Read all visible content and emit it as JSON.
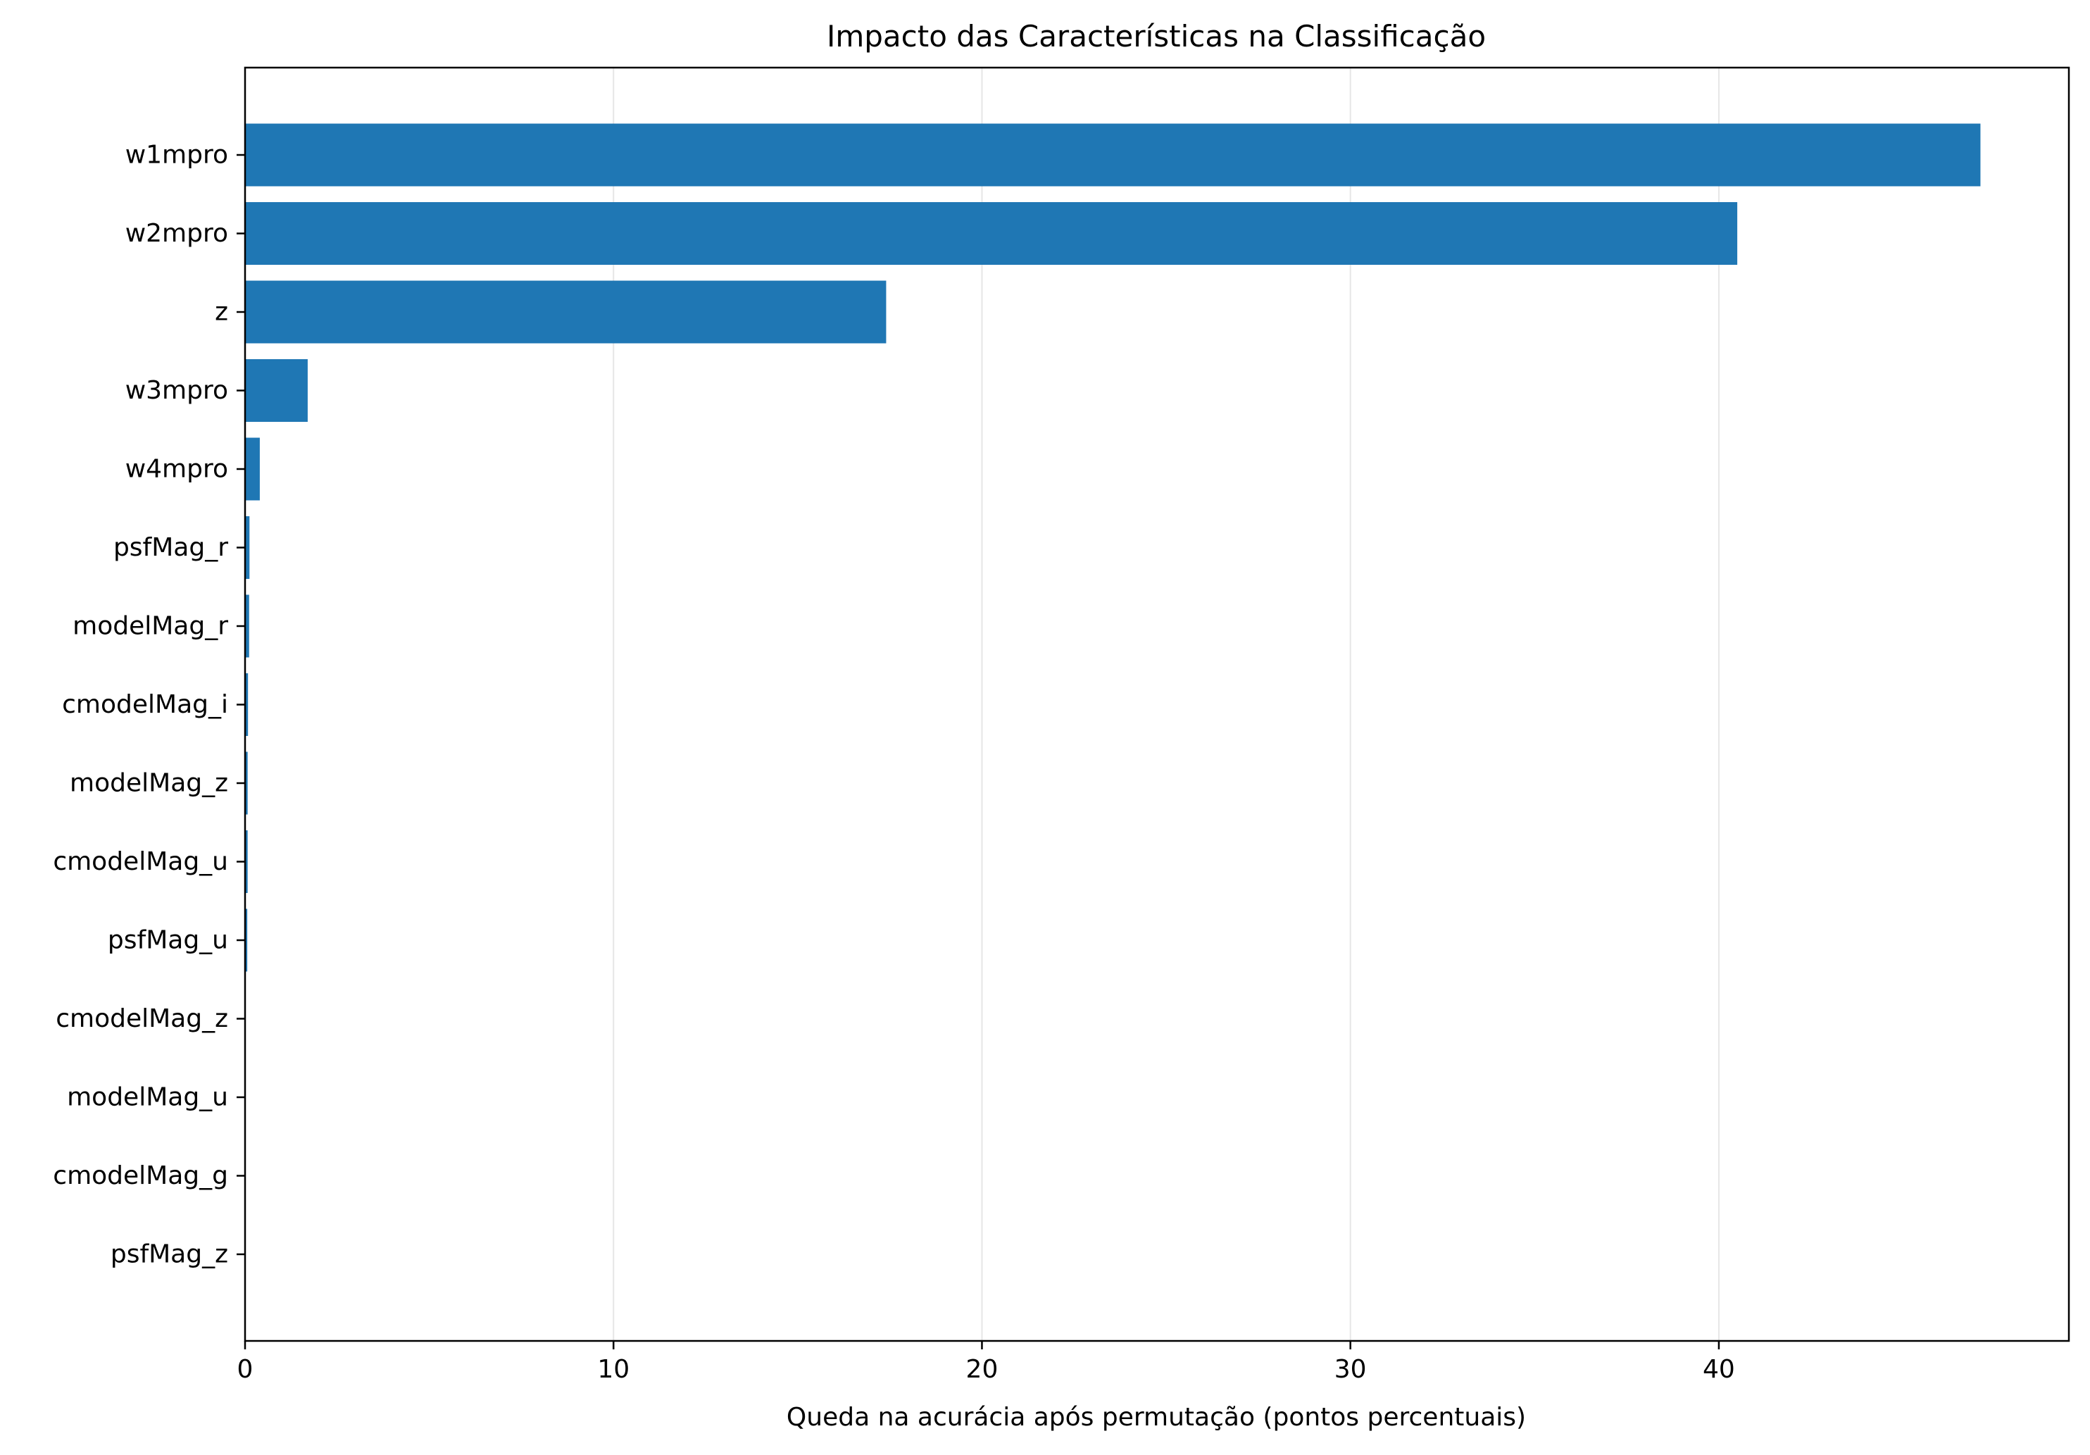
{
  "chart_data": {
    "type": "bar",
    "orientation": "horizontal",
    "title": "Impacto das Características na Classificação",
    "xlabel": "Queda na acurácia após permutação (pontos percentuais)",
    "ylabel": "",
    "categories": [
      "w1mpro",
      "w2mpro",
      "z",
      "w3mpro",
      "w4mpro",
      "psfMag_r",
      "modelMag_r",
      "cmodelMag_i",
      "modelMag_z",
      "cmodelMag_u",
      "psfMag_u",
      "cmodelMag_z",
      "modelMag_u",
      "cmodelMag_g",
      "psfMag_z"
    ],
    "values": [
      47.1,
      40.5,
      17.4,
      1.7,
      0.4,
      0.12,
      0.11,
      0.08,
      0.07,
      0.07,
      0.06,
      0.01,
      0.01,
      0.005,
      0.005
    ],
    "xlim": [
      0,
      49.5
    ],
    "xticks": [
      0,
      10,
      20,
      30,
      40
    ],
    "xtick_labels": [
      "0",
      "10",
      "20",
      "30",
      "40"
    ],
    "grid": "x",
    "bar_color": "#1f77b4",
    "grid_color": "#e6e6e6"
  }
}
